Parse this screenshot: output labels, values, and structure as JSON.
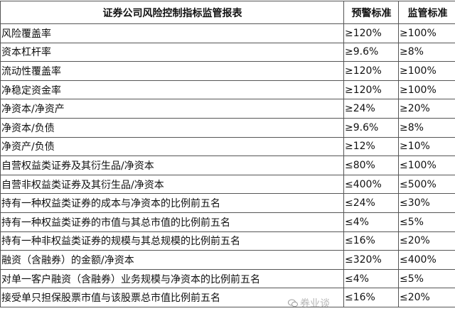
{
  "table": {
    "headers": [
      "证券公司风险控制指标监管报表",
      "预警标准",
      "监管标准"
    ],
    "rows": [
      [
        "风险覆盖率",
        "≥120%",
        "≥100%"
      ],
      [
        "资本杠杆率",
        "≥9.6%",
        "≥8%"
      ],
      [
        "流动性覆盖率",
        "≥120%",
        "≥100%"
      ],
      [
        "净稳定资金率",
        "≥120%",
        "≥100%"
      ],
      [
        "净资本/净资产",
        "≥24%",
        "≥20%"
      ],
      [
        "净资本/负债",
        "≥9.6%",
        "≥8%"
      ],
      [
        "净资产/负债",
        "≥12%",
        "≥10%"
      ],
      [
        "自营权益类证券及其衍生品/净资本",
        "≤80%",
        "≤100%"
      ],
      [
        "自营非权益类证券及其衍生品/净资本",
        "≤400%",
        "≤500%"
      ],
      [
        "持有一种权益类证券的成本与净资本的比例前五名",
        "≤24%",
        "≤30%"
      ],
      [
        "持有一种权益类证券的市值与其总市值的比例前五名",
        "≤4%",
        "≤5%"
      ],
      [
        "持有一种非权益类证券的规模与其总规模的比例前五名",
        "≤16%",
        "≤20%"
      ],
      [
        "融资（含融券）的金额/净资本",
        "≤320%",
        "≤400%"
      ],
      [
        "对单一客户融资（含融券）业务规模与净资本的比例前五名",
        "≤4%",
        "≤5%"
      ],
      [
        "接受单只担保股票市值与该股票总市值比例前五名",
        "≤16%",
        "≤20%"
      ]
    ]
  },
  "watermark": {
    "text": "券业谈",
    "icon": "wechat-icon"
  }
}
